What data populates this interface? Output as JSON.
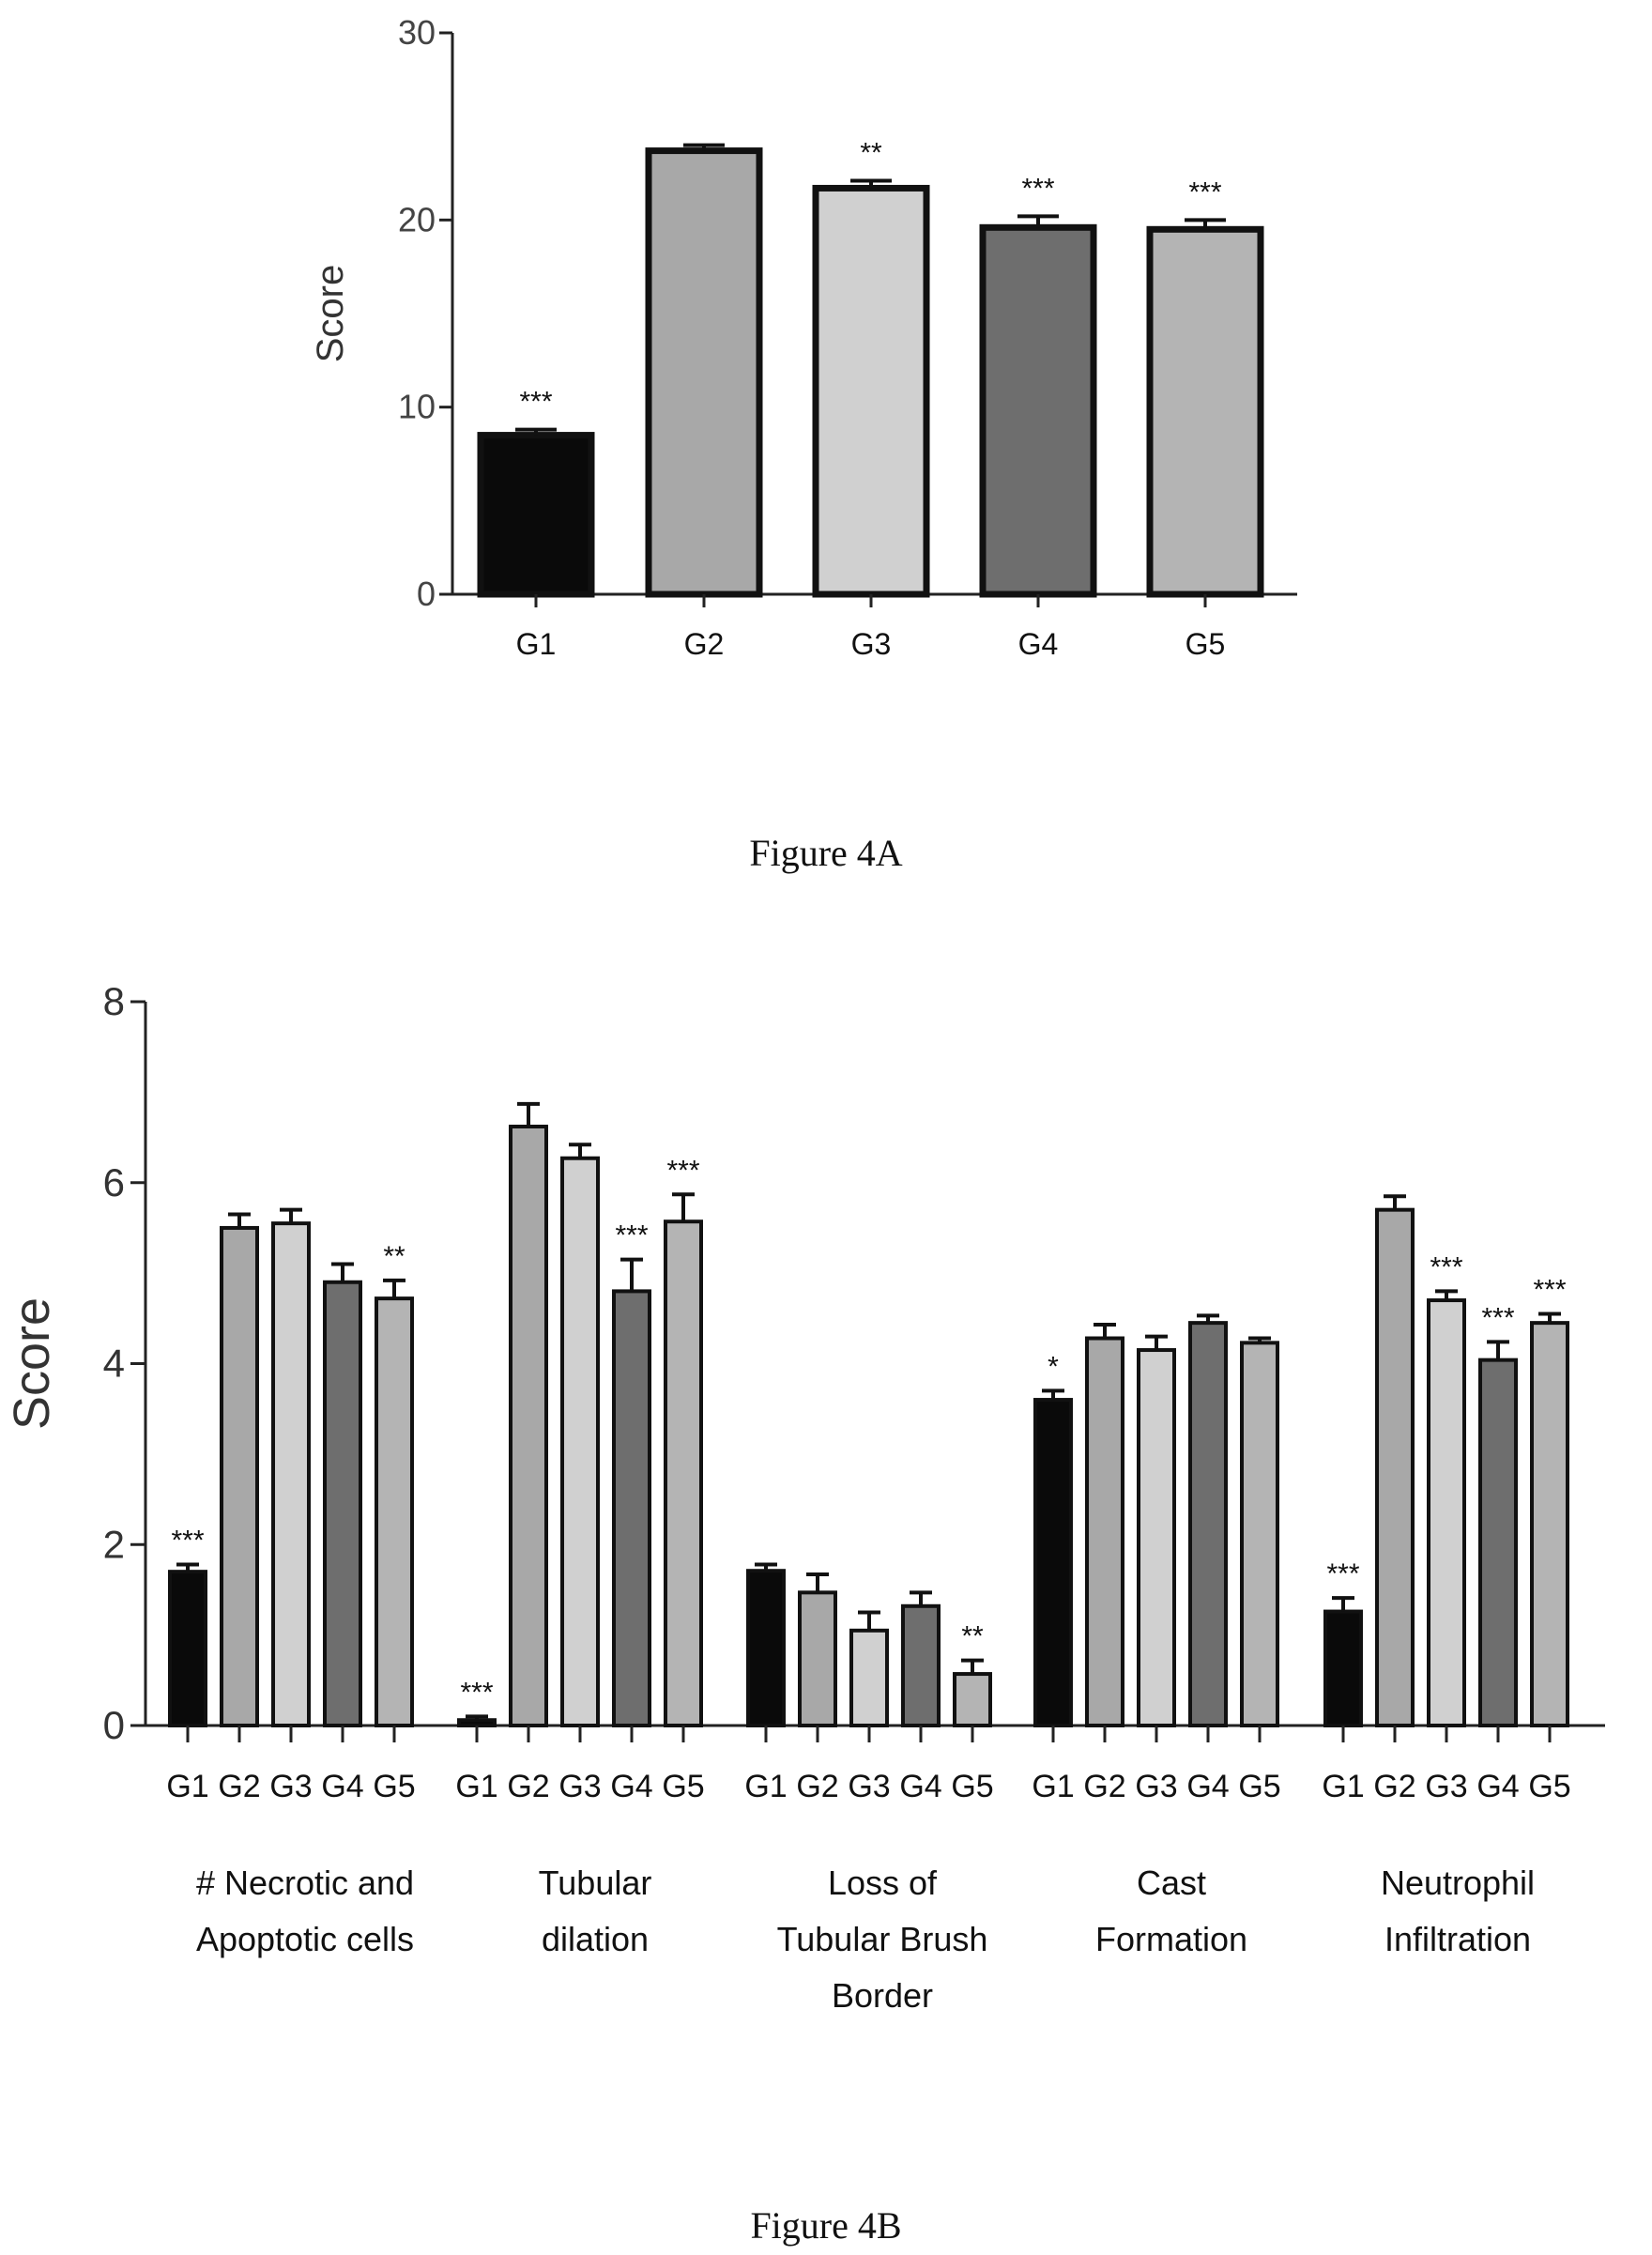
{
  "chart_data": [
    {
      "type": "bar",
      "ylabel": "Score",
      "ylim": [
        0,
        30
      ],
      "yticks": [
        0,
        10,
        20,
        30
      ],
      "categories": [
        "G1",
        "G2",
        "G3",
        "G4",
        "G5"
      ],
      "values": [
        8.5,
        23.7,
        21.7,
        19.6,
        19.5
      ],
      "errors": [
        0.3,
        0.3,
        0.4,
        0.6,
        0.5
      ],
      "significance": [
        "***",
        "",
        "**",
        "***",
        "***"
      ],
      "colors": [
        "#0a0a0a",
        "#a8a8a8",
        "#d0d0d0",
        "#6e6e6e",
        "#b4b4b4"
      ],
      "caption": "Figure 4A"
    },
    {
      "type": "bar",
      "ylabel": "Score",
      "ylim": [
        0,
        8
      ],
      "yticks": [
        0,
        2,
        4,
        6,
        8
      ],
      "categories": [
        "G1",
        "G2",
        "G3",
        "G4",
        "G5"
      ],
      "groups": [
        {
          "label_lines": [
            "# Necrotic and",
            "Apoptotic cells"
          ],
          "values": [
            1.7,
            5.5,
            5.55,
            4.9,
            4.72
          ],
          "errors": [
            0.08,
            0.15,
            0.15,
            0.2,
            0.2
          ],
          "significance": [
            "***",
            "",
            "",
            "",
            "**"
          ]
        },
        {
          "label_lines": [
            "Tubular",
            "dilation"
          ],
          "values": [
            0.06,
            6.62,
            6.27,
            4.8,
            5.57
          ],
          "errors": [
            0.04,
            0.25,
            0.15,
            0.35,
            0.3
          ],
          "significance": [
            "***",
            "",
            "",
            "***",
            "***"
          ]
        },
        {
          "label_lines": [
            "Loss of",
            "Tubular Brush",
            "Border"
          ],
          "values": [
            1.71,
            1.47,
            1.05,
            1.32,
            0.57
          ],
          "errors": [
            0.07,
            0.2,
            0.2,
            0.15,
            0.15
          ],
          "significance": [
            "",
            "",
            "",
            "",
            "**"
          ]
        },
        {
          "label_lines": [
            "Cast",
            "Formation"
          ],
          "values": [
            3.6,
            4.28,
            4.15,
            4.45,
            4.23
          ],
          "errors": [
            0.1,
            0.15,
            0.15,
            0.08,
            0.05
          ],
          "significance": [
            "*",
            "",
            "",
            "",
            ""
          ]
        },
        {
          "label_lines": [
            "Neutrophil",
            "Infiltration"
          ],
          "values": [
            1.26,
            5.7,
            4.7,
            4.04,
            4.45
          ],
          "errors": [
            0.15,
            0.15,
            0.1,
            0.2,
            0.1
          ],
          "significance": [
            "***",
            "",
            "***",
            "***",
            "***"
          ]
        }
      ],
      "colors": [
        "#0a0a0a",
        "#a8a8a8",
        "#d0d0d0",
        "#6e6e6e",
        "#b4b4b4"
      ],
      "caption": "Figure 4B"
    }
  ]
}
